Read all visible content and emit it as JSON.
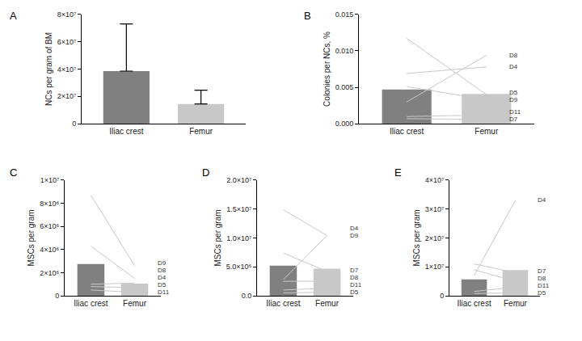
{
  "chart_data": [
    {
      "type": "bar",
      "panel": "A",
      "categories": [
        "Iliac crest",
        "Femur"
      ],
      "values": [
        38500000,
        14500000
      ],
      "error_plus": [
        34500000,
        10000000
      ],
      "colors": [
        "#808080",
        "#c8c8c8"
      ],
      "ylabel": "NCs per gram of BM",
      "ylim": [
        0,
        80000000
      ],
      "yticks": [
        0,
        {
          "value": 20000000,
          "label": "2×10⁷"
        },
        {
          "value": 40000000,
          "label": "4×10⁷"
        },
        {
          "value": 60000000,
          "label": "6×10⁷"
        },
        {
          "value": 80000000,
          "label": "8×10⁷"
        }
      ]
    },
    {
      "type": "bar",
      "panel": "B",
      "categories": [
        "Iliac crest",
        "Femur"
      ],
      "values": [
        0.0047,
        0.0041
      ],
      "colors": [
        "#808080",
        "#c8c8c8"
      ],
      "ylabel": "Colonies per NCs, %",
      "ylim": [
        0,
        0.015
      ],
      "yticks": [
        {
          "value": 0,
          "label": "0.000"
        },
        {
          "value": 0.005,
          "label": "0.005"
        },
        {
          "value": 0.01,
          "label": "0.010"
        },
        {
          "value": 0.015,
          "label": "0.015"
        }
      ],
      "series": [
        {
          "name": "D8",
          "type": "line",
          "color": "#c8c8c8",
          "values": [
            0.003,
            0.0094
          ]
        },
        {
          "name": "D4",
          "type": "line",
          "color": "#c8c8c8",
          "values": [
            0.0069,
            0.0078
          ]
        },
        {
          "name": "D5",
          "type": "line",
          "color": "#c8c8c8",
          "values": [
            0.0117,
            0.004
          ]
        },
        {
          "name": "D9",
          "type": "line",
          "color": "#c8c8c8",
          "values": [
            0.0051,
            0.0033
          ]
        },
        {
          "name": "D11",
          "type": "line",
          "color": "#c8c8c8",
          "values": [
            0.001,
            0.0012
          ]
        },
        {
          "name": "D7",
          "type": "line",
          "color": "#c8c8c8",
          "values": [
            0.0007,
            0.0006
          ]
        }
      ]
    },
    {
      "type": "bar",
      "panel": "C",
      "categories": [
        "Iliac crest",
        "Femur"
      ],
      "values": [
        2750000,
        1050000
      ],
      "colors": [
        "#808080",
        "#c8c8c8"
      ],
      "ylabel": "MSCs per gram",
      "ylim": [
        0,
        10000000
      ],
      "yticks": [
        0,
        {
          "value": 2000000,
          "label": "2×10⁶"
        },
        {
          "value": 4000000,
          "label": "4×10⁶"
        },
        {
          "value": 6000000,
          "label": "6×10⁶"
        },
        {
          "value": 8000000,
          "label": "8×10⁶"
        },
        {
          "value": 10000000,
          "label": "1×10⁷"
        }
      ],
      "series": [
        {
          "name": "D9",
          "type": "line",
          "color": "#c8c8c8",
          "values": [
            8700000,
            2600000
          ]
        },
        {
          "name": "D8",
          "type": "line",
          "color": "#c8c8c8",
          "values": [
            4300000,
            1500000
          ]
        },
        {
          "name": "D4",
          "type": "line",
          "color": "#c8c8c8",
          "values": [
            1000000,
            1100000
          ]
        },
        {
          "name": "D5",
          "type": "line",
          "color": "#c8c8c8",
          "values": [
            800000,
            700000
          ]
        },
        {
          "name": "D11",
          "type": "line",
          "color": "#c8c8c8",
          "values": [
            500000,
            300000
          ]
        }
      ]
    },
    {
      "type": "bar",
      "panel": "D",
      "categories": [
        "Iliac crest",
        "Femur"
      ],
      "values": [
        5200000,
        4700000
      ],
      "colors": [
        "#808080",
        "#c8c8c8"
      ],
      "ylabel": "MSCs per gram",
      "ylim": [
        0,
        20000000
      ],
      "yticks": [
        {
          "value": 0,
          "label": "0.0"
        },
        {
          "value": 5000000,
          "label": "5.0×10⁶"
        },
        {
          "value": 10000000,
          "label": "1.0×10⁷"
        },
        {
          "value": 15000000,
          "label": "1.5×10⁷"
        },
        {
          "value": 20000000,
          "label": "2.0×10⁷"
        }
      ],
      "series": [
        {
          "name": "D9",
          "type": "line",
          "color": "#c8c8c8",
          "values": [
            14900000,
            10400000
          ]
        },
        {
          "name": "D4",
          "type": "line",
          "color": "#c8c8c8",
          "values": [
            2800000,
            10400000
          ]
        },
        {
          "name": "D7",
          "type": "line",
          "color": "#c8c8c8",
          "values": [
            7400000,
            4200000
          ]
        },
        {
          "name": "D8",
          "type": "line",
          "color": "#c8c8c8",
          "values": [
            2500000,
            2500000
          ]
        },
        {
          "name": "D11",
          "type": "line",
          "color": "#c8c8c8",
          "values": [
            1000000,
            1300000
          ]
        },
        {
          "name": "D5",
          "type": "line",
          "color": "#c8c8c8",
          "values": [
            500000,
            600000
          ]
        }
      ]
    },
    {
      "type": "bar",
      "panel": "E",
      "categories": [
        "Iliac crest",
        "Femur"
      ],
      "values": [
        5700000,
        8900000
      ],
      "colors": [
        "#808080",
        "#c8c8c8"
      ],
      "ylabel": "MSCs per gram",
      "ylim": [
        0,
        40000000
      ],
      "yticks": [
        0,
        {
          "value": 10000000,
          "label": "1×10⁷"
        },
        {
          "value": 20000000,
          "label": "2×10⁷"
        },
        {
          "value": 30000000,
          "label": "3×10⁷"
        },
        {
          "value": 40000000,
          "label": "4×10⁷"
        }
      ],
      "series": [
        {
          "name": "D4",
          "type": "line",
          "color": "#c8c8c8",
          "values": [
            7000000,
            33000000
          ]
        },
        {
          "name": "D7",
          "type": "line",
          "color": "#c8c8c8",
          "values": [
            11000000,
            8000000
          ]
        },
        {
          "name": "D8",
          "type": "line",
          "color": "#c8c8c8",
          "values": [
            9000000,
            5000000
          ]
        },
        {
          "name": "D11",
          "type": "line",
          "color": "#c8c8c8",
          "values": [
            1500000,
            3000000
          ]
        },
        {
          "name": "D5",
          "type": "line",
          "color": "#c8c8c8",
          "values": [
            800000,
            1000000
          ]
        }
      ]
    }
  ]
}
